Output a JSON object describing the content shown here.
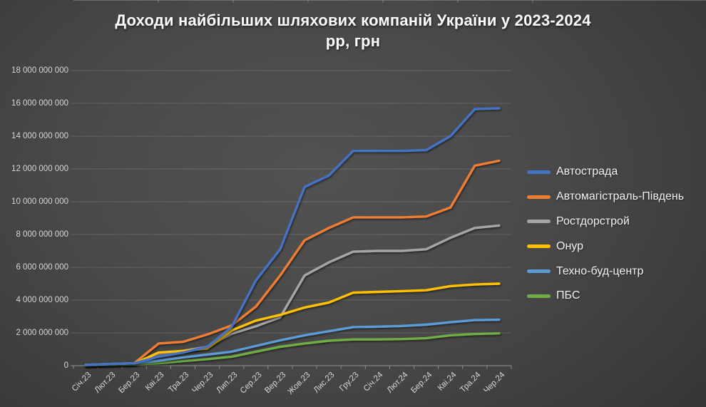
{
  "title": {
    "line1": "Доходи найбільших шляхових компаній України у 2023-2024",
    "line2": "рр, грн"
  },
  "colors": {
    "background_center": "#525252",
    "background_edge": "#282828",
    "grid": "rgba(255,255,255,0.14)",
    "axis": "#919191",
    "tick_label": "#d6d6d6",
    "legend_text": "#f1f1f1",
    "title_text": "#ffffff"
  },
  "chart_data": {
    "type": "line",
    "title": "Доходи найбільших шляхових компаній України у 2023-2024 рр, грн",
    "xlabel": "",
    "ylabel": "",
    "ylim": [
      0,
      18000000000
    ],
    "grid": "horizontal-major",
    "legend_position": "right-middle",
    "categories": [
      "Січ.23",
      "Лют.23",
      "Бер.23",
      "Кві.23",
      "Тра.23",
      "Чер.23",
      "Лип.23",
      "Сер.23",
      "Вер.23",
      "Жов.23",
      "Лис.23",
      "Гру.23",
      "Січ.24",
      "Лют.24",
      "Бер.24",
      "Кві.24",
      "Тра.24",
      "Чер.24"
    ],
    "y_ticks": [
      {
        "value": 0,
        "label": "0"
      },
      {
        "value": 2000000000,
        "label": "2 000 000 000"
      },
      {
        "value": 4000000000,
        "label": "4 000 000 000"
      },
      {
        "value": 6000000000,
        "label": "6 000 000 000"
      },
      {
        "value": 8000000000,
        "label": "8 000 000 000"
      },
      {
        "value": 10000000000,
        "label": "10 000 000 000"
      },
      {
        "value": 12000000000,
        "label": "12 000 000 000"
      },
      {
        "value": 14000000000,
        "label": "14 000 000 000"
      },
      {
        "value": 16000000000,
        "label": "16 000 000 000"
      },
      {
        "value": 18000000000,
        "label": "18 000 000 000"
      }
    ],
    "series": [
      {
        "name": "Автострада",
        "color": "#4472C4",
        "values": [
          50000000,
          100000000,
          150000000,
          550000000,
          800000000,
          1150000000,
          2350000000,
          5200000000,
          7100000000,
          10900000000,
          11600000000,
          13100000000,
          13100000000,
          13100000000,
          13150000000,
          14000000000,
          15650000000,
          15700000000
        ]
      },
      {
        "name": "Автомагістраль-Південь",
        "color": "#ED7D31",
        "values": [
          50000000,
          100000000,
          150000000,
          1350000000,
          1450000000,
          1900000000,
          2450000000,
          3600000000,
          5500000000,
          7650000000,
          8400000000,
          9050000000,
          9050000000,
          9050000000,
          9100000000,
          9650000000,
          12200000000,
          12500000000
        ]
      },
      {
        "name": "Ростдорстрой",
        "color": "#A5A5A5",
        "values": [
          30000000,
          60000000,
          100000000,
          650000000,
          900000000,
          1150000000,
          1950000000,
          2400000000,
          2950000000,
          5500000000,
          6300000000,
          6950000000,
          7000000000,
          7000000000,
          7100000000,
          7800000000,
          8400000000,
          8550000000
        ]
      },
      {
        "name": "Онур",
        "color": "#FFC000",
        "values": [
          50000000,
          80000000,
          120000000,
          800000000,
          900000000,
          1050000000,
          2150000000,
          2750000000,
          3100000000,
          3550000000,
          3850000000,
          4450000000,
          4500000000,
          4550000000,
          4600000000,
          4850000000,
          4950000000,
          5000000000
        ]
      },
      {
        "name": "Техно-буд-центр",
        "color": "#5B9BD5",
        "values": [
          50000000,
          100000000,
          150000000,
          300000000,
          500000000,
          680000000,
          850000000,
          1200000000,
          1550000000,
          1850000000,
          2100000000,
          2350000000,
          2380000000,
          2420000000,
          2500000000,
          2650000000,
          2780000000,
          2800000000
        ]
      },
      {
        "name": "ПБС",
        "color": "#70AD47",
        "values": [
          20000000,
          50000000,
          80000000,
          150000000,
          280000000,
          400000000,
          550000000,
          850000000,
          1150000000,
          1350000000,
          1520000000,
          1600000000,
          1600000000,
          1620000000,
          1680000000,
          1850000000,
          1930000000,
          1970000000
        ]
      }
    ],
    "draw_order": [
      2,
      1,
      3,
      5,
      4,
      0
    ]
  }
}
